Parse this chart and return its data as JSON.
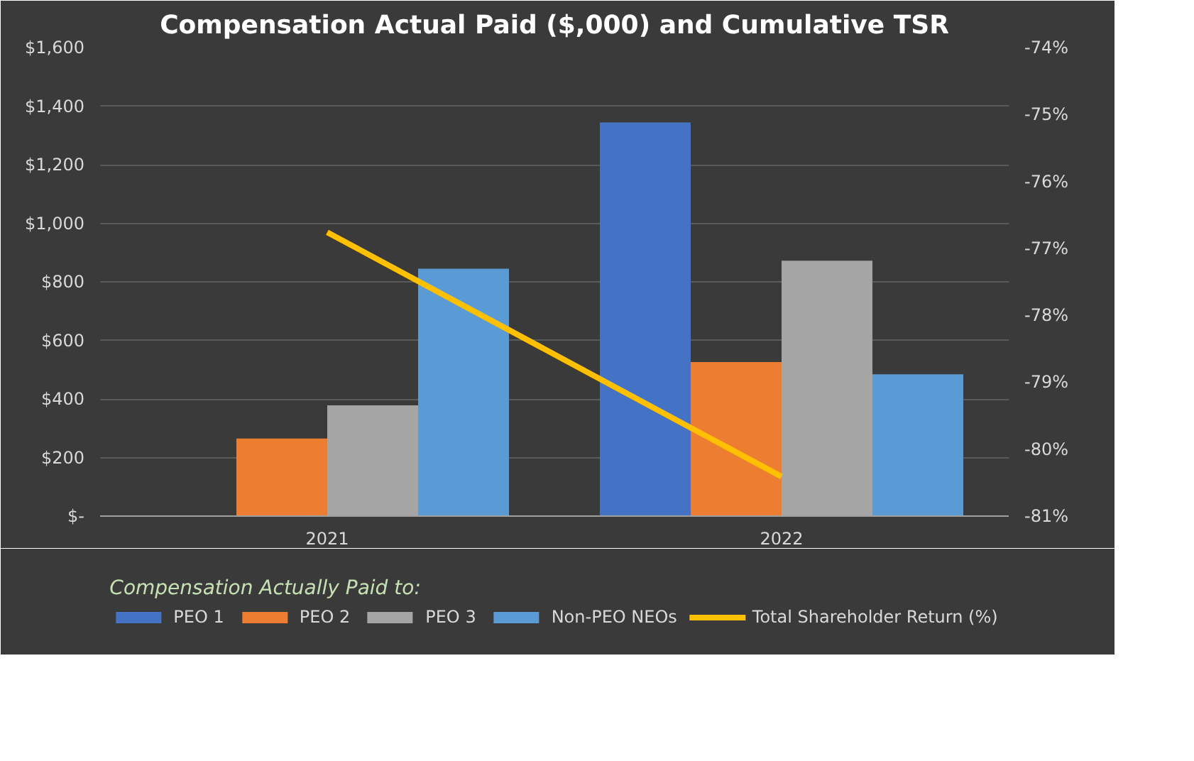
{
  "chart_data": {
    "type": "bar",
    "title": "Compensation Actual Paid ($,000) and Cumulative TSR",
    "legend_title": "Compensation Actually Paid to:",
    "categories": [
      "2021",
      "2022"
    ],
    "series": [
      {
        "name": "PEO 1",
        "color": "#4472c4",
        "values": [
          null,
          1344
        ]
      },
      {
        "name": "PEO 2",
        "color": "#ed7d31",
        "values": [
          265,
          526
        ]
      },
      {
        "name": "PEO 3",
        "color": "#a5a5a5",
        "values": [
          378,
          872
        ]
      },
      {
        "name": "Non-PEO NEOs",
        "color": "#5b9bd5",
        "values": [
          845,
          484
        ]
      },
      {
        "name": "Total Shareholder Return (%)",
        "color": "#ffc000",
        "type": "line",
        "axis": "y2",
        "values": [
          -76.76,
          -80.41
        ]
      }
    ],
    "ylim": [
      0,
      1600
    ],
    "yticks": [
      {
        "value": 0,
        "label": "$-"
      },
      {
        "value": 200,
        "label": "$200"
      },
      {
        "value": 400,
        "label": "$400"
      },
      {
        "value": 600,
        "label": "$600"
      },
      {
        "value": 800,
        "label": "$800"
      },
      {
        "value": 1000,
        "label": "$1,000"
      },
      {
        "value": 1200,
        "label": "$1,200"
      },
      {
        "value": 1400,
        "label": "$1,400"
      },
      {
        "value": 1600,
        "label": "$1,600"
      }
    ],
    "y2lim": [
      -81,
      -74
    ],
    "y2ticks": [
      {
        "value": -81,
        "label": "-81%"
      },
      {
        "value": -80,
        "label": "-80%"
      },
      {
        "value": -79,
        "label": "-79%"
      },
      {
        "value": -78,
        "label": "-78%"
      },
      {
        "value": -77,
        "label": "-77%"
      },
      {
        "value": -76,
        "label": "-76%"
      },
      {
        "value": -75,
        "label": "-75%"
      },
      {
        "value": -74,
        "label": "-74%"
      }
    ],
    "grid": "y",
    "legend": "bottom"
  }
}
